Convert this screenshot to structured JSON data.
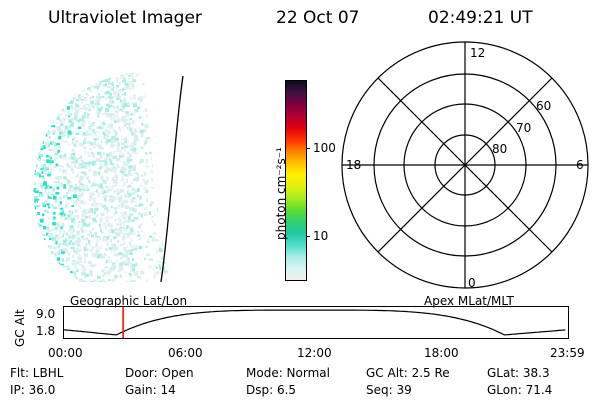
{
  "header": {
    "instrument": "Ultraviolet Imager",
    "date": "22 Oct 07",
    "time": "02:49:21 UT"
  },
  "colorbar": {
    "title": "photon cm⁻²s⁻¹",
    "scale": "log",
    "tick_labels": [
      "100",
      "10"
    ],
    "tick_values": [
      100,
      10
    ],
    "range": [
      2.5,
      700
    ],
    "colors": [
      "#f0f0f0",
      "#d8f4f2",
      "#a8ece6",
      "#50dcc8",
      "#20c8a0",
      "#30d070",
      "#60dc30",
      "#a8ec20",
      "#e0f010",
      "#fff000",
      "#ffc000",
      "#ff8000",
      "#ff3000",
      "#e00010",
      "#b00030",
      "#800040",
      "#401040",
      "#0c0a1e"
    ]
  },
  "polar_plot": {
    "hour_labels": [
      "12",
      "18",
      "6",
      "0"
    ],
    "lat_labels": [
      "60",
      "70",
      "80"
    ]
  },
  "timeline": {
    "left_label": "Geographic Lat/Lon",
    "right_label": "Apex MLat/MLT",
    "axis_title": "GC Alt",
    "y_ticks": [
      "9.0",
      "1.8"
    ],
    "x_ticks": [
      "00:00",
      "06:00",
      "12:00",
      "18:00",
      "23:59"
    ],
    "marker_time_hours": 2.82,
    "marker_color": "#ff0000"
  },
  "status": {
    "flt": "Flt: LBHL",
    "door": "Door: Open",
    "mode": "Mode: Normal",
    "gcalt": "GC Alt: 2.5 Re",
    "glat": "GLat:  38.3",
    "ip": "IP: 36.0",
    "gain": "Gain: 14",
    "dsp": "Dsp:     6.5",
    "seq": "Seq: 39",
    "glon": "GLon:  71.4"
  }
}
